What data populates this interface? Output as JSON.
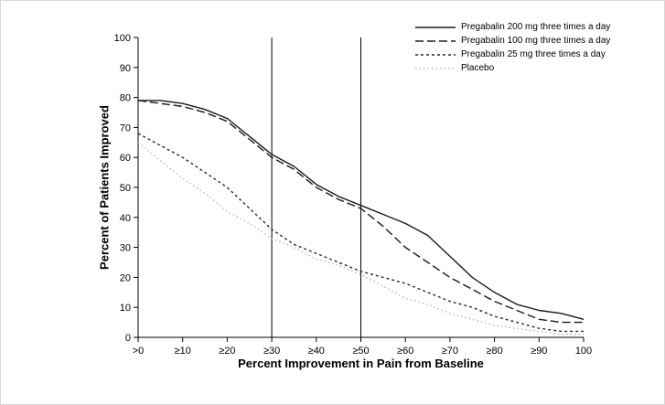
{
  "figure": {
    "background": "#ffffff",
    "border_color": "#d8d8d8"
  },
  "chart_data": {
    "type": "line",
    "title": "",
    "xlabel": "Percent Improvement in Pain from Baseline",
    "ylabel": "Percent of Patients Improved",
    "xlim": [
      0,
      100
    ],
    "ylim": [
      0,
      100
    ],
    "grid": false,
    "legend_position": "top-right",
    "x_tick_values": [
      0,
      10,
      20,
      30,
      40,
      50,
      60,
      70,
      80,
      90,
      100
    ],
    "x_tick_labels": [
      ">0",
      "≥10",
      "≥20",
      "≥30",
      "≥40",
      "≥50",
      "≥60",
      "≥70",
      "≥80",
      "≥90",
      "100"
    ],
    "y_ticks": [
      0,
      10,
      20,
      30,
      40,
      50,
      60,
      70,
      80,
      90,
      100
    ],
    "reference_lines_x": [
      30,
      50
    ],
    "x": [
      0,
      5,
      10,
      15,
      20,
      25,
      30,
      35,
      40,
      45,
      50,
      55,
      60,
      65,
      70,
      75,
      80,
      85,
      90,
      95,
      100
    ],
    "series": [
      {
        "name": "Pregabalin 200 mg three times a day",
        "color": "#1a1a1a",
        "dash": "",
        "width": 1.4,
        "values": [
          79,
          79,
          78,
          76,
          73,
          67,
          61,
          57,
          51,
          47,
          44,
          41,
          38,
          34,
          27,
          20,
          15,
          11,
          9,
          8,
          6
        ]
      },
      {
        "name": "Pregabalin 100 mg three times a day",
        "color": "#1a1a1a",
        "dash": "9 4",
        "width": 1.4,
        "values": [
          79,
          78,
          77,
          75,
          72,
          66,
          60,
          56,
          50,
          46,
          43,
          37,
          30,
          25,
          20,
          16,
          12,
          9,
          6,
          5,
          5
        ]
      },
      {
        "name": "Pregabalin 25 mg three times a day",
        "color": "#2b2b2b",
        "dash": "3 3",
        "width": 1.4,
        "values": [
          68,
          64,
          60,
          55,
          50,
          43,
          36,
          31,
          28,
          25,
          22,
          20,
          18,
          15,
          12,
          10,
          7,
          5,
          3,
          2,
          2
        ]
      },
      {
        "name": "Placebo",
        "color": "#b3b3b3",
        "dash": "1.5 3",
        "width": 1.3,
        "values": [
          65,
          59,
          53,
          48,
          42,
          38,
          33,
          30,
          26,
          24,
          21,
          17,
          13,
          11,
          8,
          6,
          4,
          3,
          2,
          1,
          1
        ]
      }
    ]
  }
}
